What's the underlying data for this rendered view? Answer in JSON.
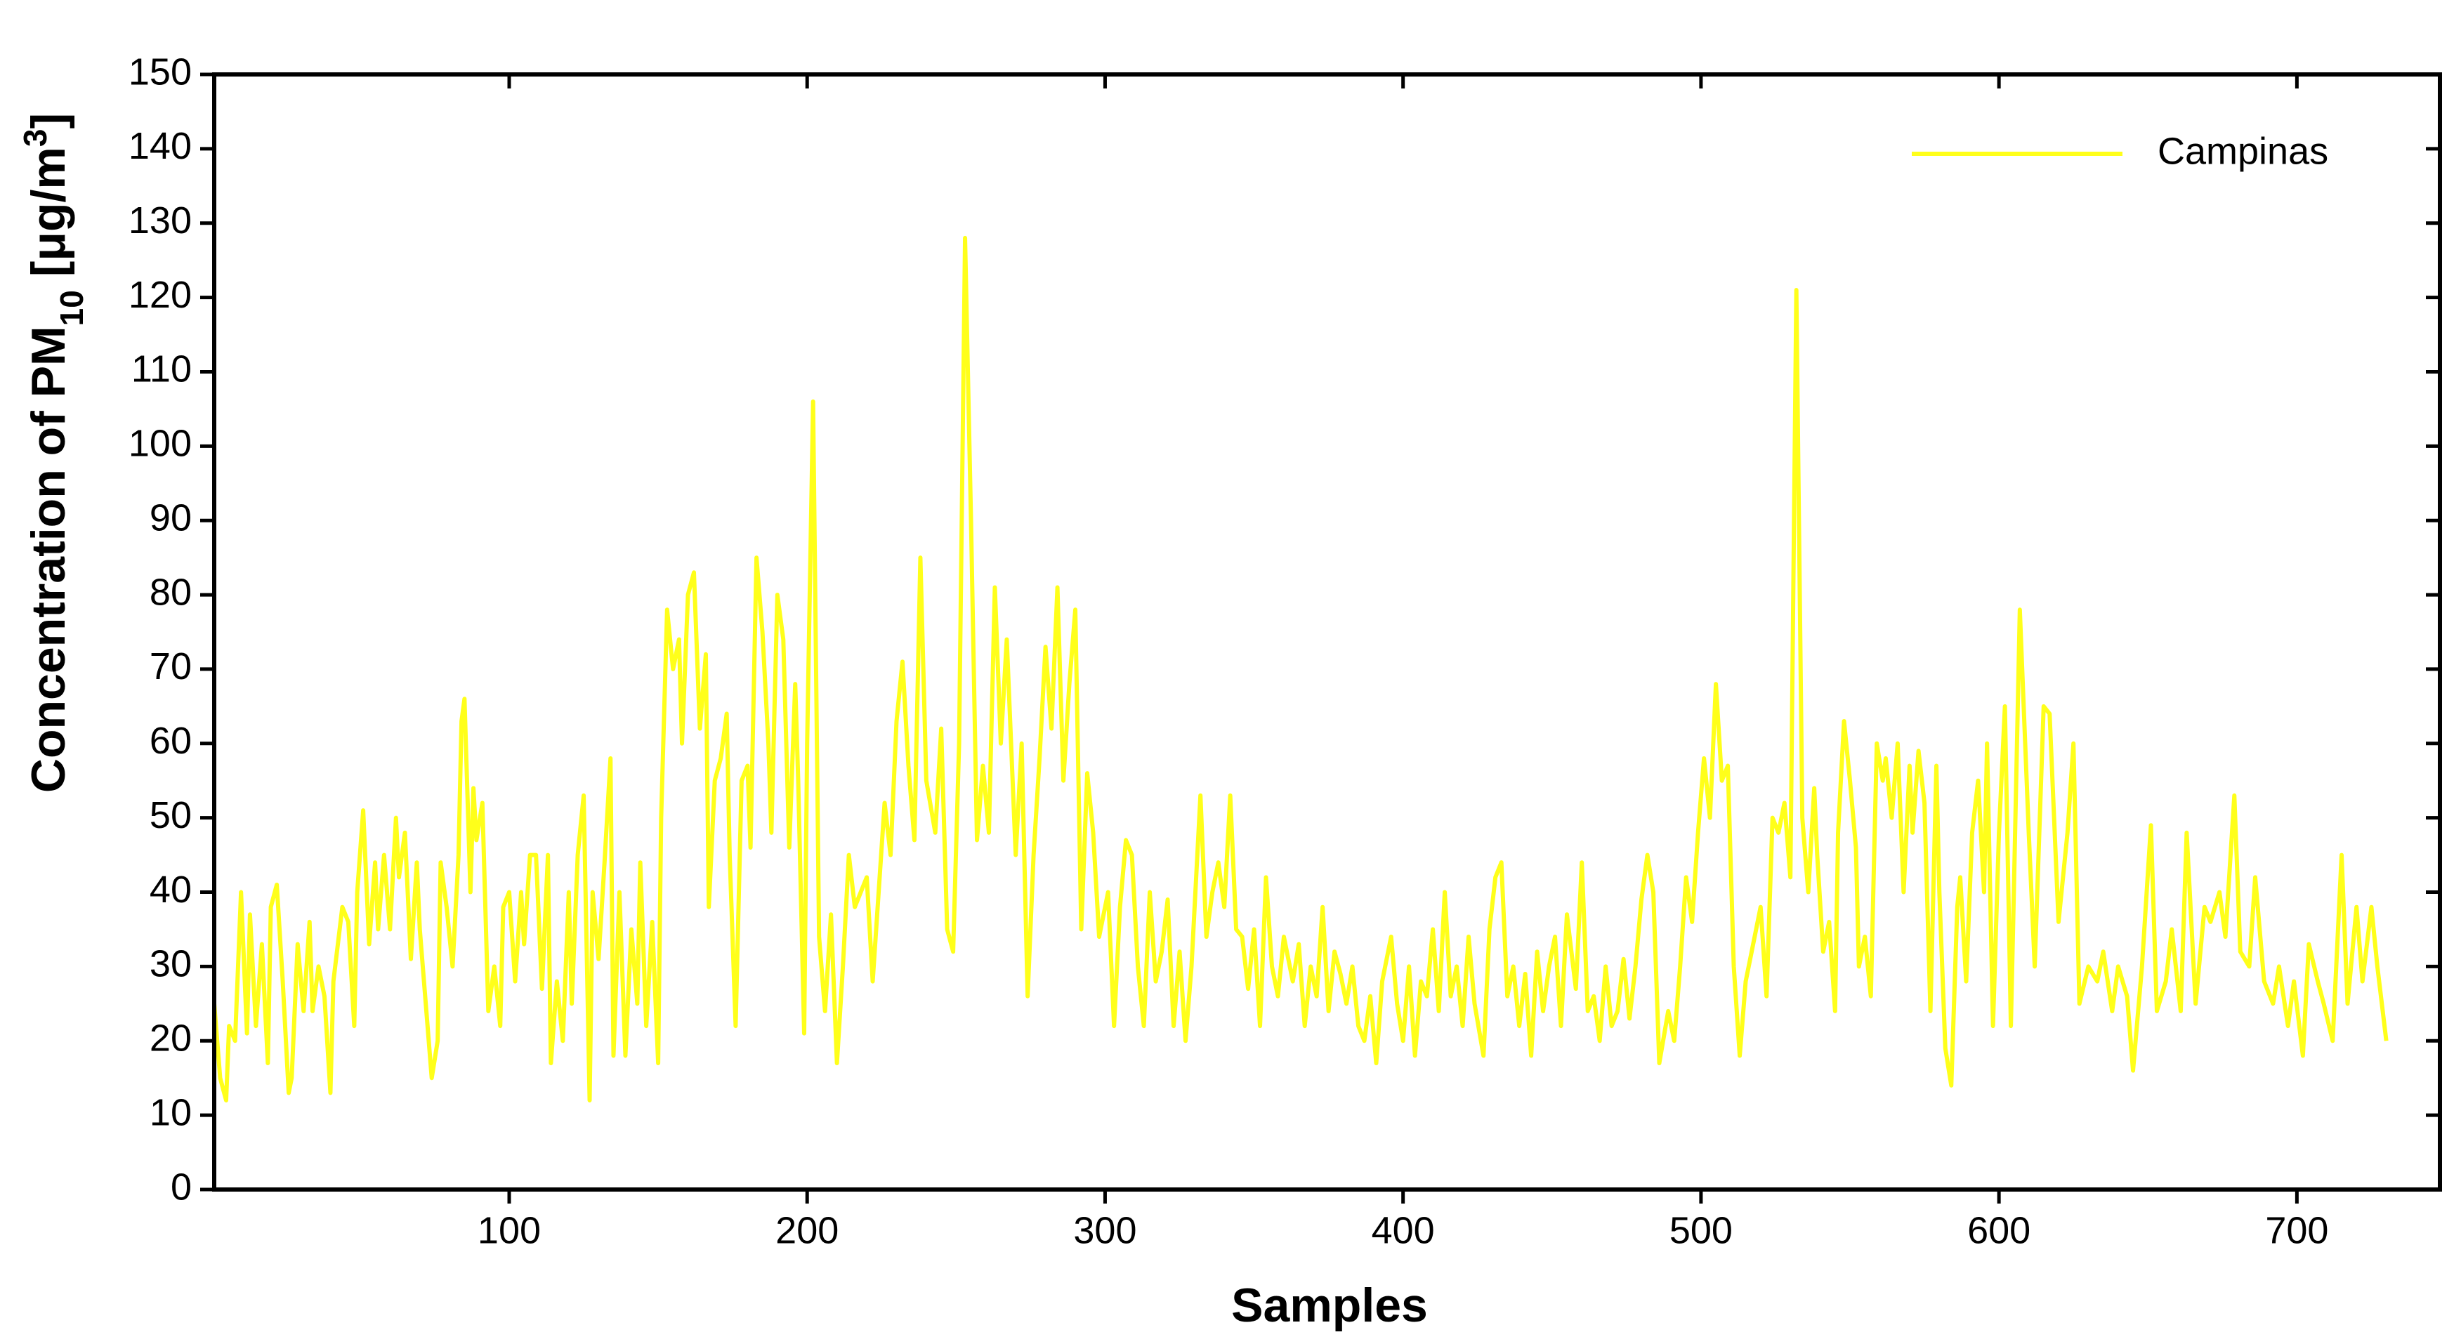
{
  "chart_data": {
    "type": "line",
    "x_label": "Samples",
    "y_label_parts": [
      "Concentration of PM",
      "10",
      " [μg/m",
      "3",
      "]"
    ],
    "xlim": [
      1,
      748
    ],
    "ylim": [
      0,
      150
    ],
    "xticks": [
      100,
      200,
      300,
      400,
      500,
      600,
      700
    ],
    "yticks": [
      0,
      10,
      20,
      30,
      40,
      50,
      60,
      70,
      80,
      90,
      100,
      110,
      120,
      130,
      140,
      150
    ],
    "legend": "upper right",
    "x": [
      1,
      3,
      5,
      6,
      8,
      10,
      12,
      13,
      15,
      17,
      19,
      20,
      22,
      24,
      26,
      27,
      29,
      31,
      33,
      34,
      36,
      38,
      40,
      41,
      44,
      46,
      48,
      49,
      51,
      53,
      55,
      56,
      58,
      60,
      62,
      63,
      65,
      67,
      69,
      70,
      72,
      74,
      76,
      77,
      79,
      81,
      83,
      84,
      85,
      87,
      88,
      89,
      91,
      93,
      95,
      97,
      98,
      100,
      102,
      104,
      105,
      107,
      109,
      111,
      113,
      114,
      116,
      118,
      120,
      121,
      123,
      125,
      127,
      128,
      130,
      132,
      134,
      135,
      137,
      139,
      141,
      143,
      144,
      146,
      148,
      150,
      151,
      153,
      155,
      157,
      158,
      160,
      162,
      164,
      166,
      167,
      169,
      171,
      173,
      174,
      176,
      178,
      180,
      181,
      183,
      185,
      187,
      188,
      190,
      192,
      194,
      196,
      197,
      199,
      200,
      202,
      204,
      206,
      208,
      210,
      212,
      214,
      216,
      218,
      220,
      222,
      224,
      226,
      228,
      230,
      232,
      234,
      236,
      238,
      240,
      243,
      245,
      247,
      249,
      251,
      253,
      255,
      257,
      259,
      261,
      263,
      265,
      267,
      270,
      272,
      274,
      276,
      278,
      280,
      282,
      284,
      286,
      288,
      290,
      292,
      294,
      296,
      298,
      301,
      303,
      305,
      307,
      309,
      311,
      313,
      315,
      317,
      319,
      321,
      323,
      325,
      327,
      329,
      332,
      334,
      336,
      338,
      340,
      342,
      344,
      346,
      348,
      350,
      352,
      354,
      356,
      358,
      360,
      363,
      365,
      367,
      369,
      371,
      373,
      375,
      377,
      379,
      381,
      383,
      385,
      387,
      389,
      391,
      393,
      396,
      398,
      400,
      402,
      404,
      406,
      408,
      410,
      412,
      414,
      416,
      418,
      420,
      422,
      424,
      427,
      429,
      431,
      433,
      435,
      437,
      439,
      441,
      443,
      445,
      447,
      449,
      451,
      453,
      455,
      458,
      460,
      462,
      464,
      466,
      468,
      470,
      472,
      474,
      476,
      478,
      480,
      482,
      484,
      486,
      489,
      491,
      493,
      495,
      497,
      499,
      501,
      503,
      505,
      507,
      509,
      511,
      513,
      515,
      517,
      520,
      522,
      524,
      526,
      528,
      530,
      532,
      534,
      536,
      538,
      539,
      541,
      543,
      545,
      546,
      548,
      550,
      552,
      553,
      555,
      557,
      559,
      561,
      562,
      564,
      566,
      568,
      570,
      571,
      573,
      575,
      577,
      579,
      580,
      582,
      584,
      586,
      587,
      589,
      591,
      593,
      595,
      596,
      598,
      600,
      602,
      604,
      605,
      607,
      610,
      612,
      615,
      617,
      620,
      623,
      625,
      627,
      630,
      633,
      635,
      638,
      640,
      643,
      645,
      648,
      651,
      653,
      656,
      658,
      661,
      663,
      666,
      669,
      671,
      674,
      676,
      679,
      681,
      684,
      686,
      689,
      692,
      694,
      697,
      699,
      702,
      704,
      707,
      709,
      712,
      715,
      717,
      720,
      722,
      725,
      727,
      730
    ],
    "series": [
      {
        "name": "Campinas",
        "color": "#ffff1a",
        "values": [
          25,
          15,
          12,
          22,
          20,
          40,
          21,
          37,
          22,
          33,
          17,
          38,
          41,
          28,
          13,
          15,
          33,
          24,
          36,
          24,
          30,
          26,
          13,
          28,
          38,
          36,
          22,
          40,
          51,
          33,
          44,
          35,
          45,
          35,
          50,
          42,
          48,
          31,
          44,
          35,
          25,
          15,
          20,
          44,
          38,
          30,
          45,
          63,
          66,
          40,
          54,
          47,
          52,
          24,
          30,
          22,
          38,
          40,
          28,
          40,
          33,
          45,
          45,
          27,
          45,
          17,
          28,
          20,
          40,
          25,
          45,
          53,
          12,
          40,
          31,
          44,
          58,
          18,
          40,
          18,
          35,
          25,
          44,
          22,
          36,
          17,
          50,
          78,
          70,
          74,
          60,
          80,
          83,
          62,
          72,
          38,
          55,
          58,
          64,
          45,
          22,
          55,
          57,
          46,
          85,
          75,
          60,
          48,
          80,
          74,
          46,
          68,
          55,
          21,
          60,
          106,
          34,
          24,
          37,
          17,
          30,
          45,
          38,
          40,
          42,
          28,
          40,
          52,
          45,
          63,
          71,
          57,
          47,
          85,
          55,
          48,
          62,
          35,
          32,
          60,
          128,
          90,
          47,
          57,
          48,
          81,
          60,
          74,
          45,
          60,
          26,
          45,
          58,
          73,
          62,
          81,
          55,
          68,
          78,
          35,
          56,
          48,
          34,
          40,
          22,
          38,
          47,
          45,
          30,
          22,
          40,
          28,
          32,
          39,
          22,
          32,
          20,
          30,
          53,
          34,
          40,
          44,
          38,
          53,
          35,
          34,
          27,
          35,
          22,
          42,
          30,
          26,
          34,
          28,
          33,
          22,
          30,
          26,
          38,
          24,
          32,
          29,
          25,
          30,
          22,
          20,
          26,
          17,
          28,
          34,
          25,
          20,
          30,
          18,
          28,
          26,
          35,
          24,
          40,
          26,
          30,
          22,
          34,
          25,
          18,
          35,
          42,
          44,
          26,
          30,
          22,
          29,
          18,
          32,
          24,
          30,
          34,
          22,
          37,
          27,
          44,
          24,
          26,
          20,
          30,
          22,
          24,
          31,
          23,
          30,
          39,
          45,
          40,
          17,
          24,
          20,
          30,
          42,
          36,
          48,
          58,
          50,
          68,
          55,
          57,
          30,
          18,
          28,
          32,
          38,
          26,
          50,
          48,
          52,
          42,
          121,
          50,
          40,
          54,
          45,
          32,
          36,
          24,
          48,
          63,
          55,
          46,
          30,
          34,
          26,
          60,
          55,
          58,
          50,
          60,
          40,
          57,
          48,
          59,
          52,
          24,
          57,
          40,
          19,
          14,
          38,
          42,
          28,
          48,
          55,
          40,
          60,
          22,
          48,
          65,
          22,
          40,
          78,
          48,
          30,
          65,
          64,
          36,
          48,
          60,
          25,
          30,
          28,
          32,
          24,
          30,
          26,
          16,
          30,
          49,
          24,
          28,
          35,
          24,
          48,
          25,
          38,
          36,
          40,
          34,
          53,
          32,
          30,
          42,
          28,
          25,
          30,
          22,
          28,
          18,
          33,
          28,
          25,
          20,
          45,
          25,
          38,
          28,
          38,
          30,
          20
        ]
      }
    ]
  }
}
